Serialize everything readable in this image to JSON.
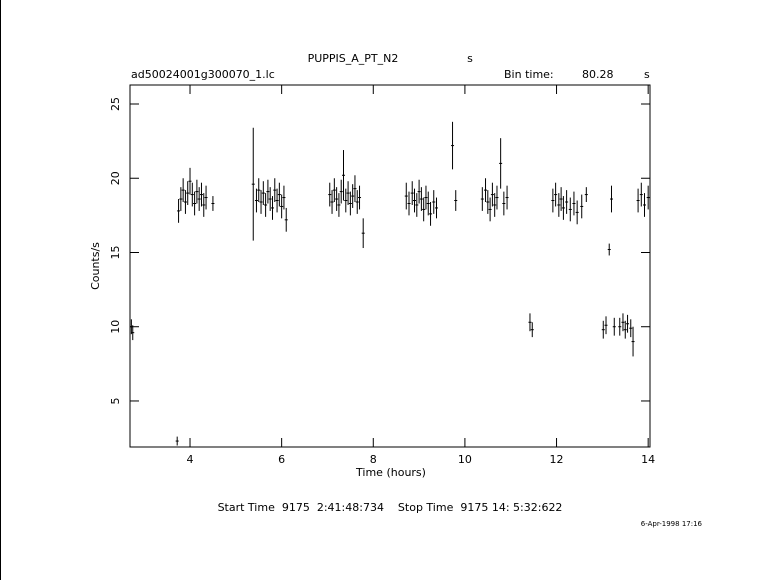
{
  "chart_data": {
    "type": "errorbar",
    "title": "PUPPIS_A_PT_N2",
    "title_unit": "s",
    "subtitle": "ad50024001g300070_1.lc",
    "bin_time_label": "Bin time:",
    "bin_time": "80.28",
    "bin_time_unit": "s",
    "xlabel": "Time (hours)",
    "ylabel": "Counts/s",
    "footer": "Start Time  9175  2:41:48:734    Stop Time  9175 14: 5:32:622",
    "date": "6-Apr-1998 17:16",
    "xlim": [
      2.69,
      14.04
    ],
    "ylim": [
      1.9,
      26.28
    ],
    "xticks": [
      4,
      6,
      8,
      10,
      12,
      14
    ],
    "yticks": [
      5,
      10,
      15,
      20,
      25
    ],
    "color": "#000000",
    "x": [
      2.72,
      2.75,
      3.72,
      3.75,
      3.8,
      3.85,
      3.9,
      3.95,
      4.0,
      4.05,
      4.1,
      4.15,
      4.2,
      4.25,
      4.3,
      4.35,
      4.5,
      5.38,
      5.45,
      5.5,
      5.55,
      5.6,
      5.65,
      5.7,
      5.75,
      5.8,
      5.85,
      5.9,
      5.95,
      6.0,
      6.05,
      6.1,
      7.05,
      7.1,
      7.15,
      7.2,
      7.25,
      7.3,
      7.35,
      7.4,
      7.45,
      7.5,
      7.55,
      7.6,
      7.65,
      7.7,
      7.78,
      8.72,
      8.78,
      8.85,
      8.9,
      8.95,
      9.0,
      9.05,
      9.1,
      9.15,
      9.2,
      9.25,
      9.32,
      9.38,
      9.73,
      9.8,
      10.38,
      10.45,
      10.5,
      10.55,
      10.6,
      10.65,
      10.7,
      10.78,
      10.85,
      10.92,
      11.42,
      11.47,
      11.92,
      11.98,
      12.05,
      12.1,
      12.15,
      12.22,
      12.3,
      12.38,
      12.45,
      12.55,
      12.65,
      13.02,
      13.08,
      13.15,
      13.2,
      13.26,
      13.38,
      13.45,
      13.5,
      13.55,
      13.62,
      13.67,
      13.78,
      13.85,
      13.92,
      14.0
    ],
    "values": [
      10.0,
      9.6,
      2.3,
      17.8,
      18.6,
      19.2,
      18.4,
      19.0,
      19.8,
      18.9,
      18.3,
      19.1,
      18.6,
      18.9,
      18.2,
      18.7,
      18.3,
      19.6,
      18.5,
      19.2,
      18.4,
      19.0,
      18.2,
      19.1,
      18.6,
      18.0,
      19.2,
      18.5,
      18.9,
      18.1,
      18.7,
      17.2,
      18.9,
      18.4,
      19.2,
      18.6,
      18.2,
      19.1,
      20.2,
      18.5,
      19.0,
      18.3,
      18.8,
      19.3,
      18.4,
      18.7,
      16.3,
      18.8,
      18.3,
      19.0,
      18.5,
      18.2,
      19.1,
      18.6,
      17.9,
      18.7,
      18.3,
      17.6,
      18.4,
      18.0,
      22.2,
      18.5,
      18.6,
      19.2,
      18.4,
      17.9,
      18.9,
      18.2,
      18.7,
      21.0,
      18.3,
      18.7,
      10.3,
      9.8,
      18.5,
      18.9,
      18.2,
      18.6,
      18.0,
      18.4,
      17.9,
      18.3,
      17.7,
      18.1,
      18.9,
      9.8,
      10.1,
      15.2,
      18.6,
      10.0,
      10.0,
      10.3,
      9.8,
      10.2,
      9.9,
      9.0,
      18.5,
      18.9,
      18.2,
      18.7
    ],
    "errors": [
      0.5,
      0.5,
      0.3,
      0.8,
      0.8,
      0.8,
      0.8,
      0.8,
      0.9,
      0.8,
      0.8,
      0.8,
      0.8,
      0.8,
      0.8,
      0.8,
      0.5,
      3.8,
      0.8,
      0.8,
      0.8,
      0.8,
      0.8,
      0.8,
      0.8,
      0.8,
      0.8,
      0.8,
      0.8,
      0.8,
      0.8,
      0.8,
      0.8,
      0.8,
      0.8,
      0.8,
      0.8,
      0.8,
      1.7,
      0.8,
      0.8,
      0.8,
      0.8,
      0.9,
      0.8,
      0.8,
      1.0,
      0.9,
      0.8,
      0.8,
      0.8,
      0.8,
      0.8,
      0.8,
      0.8,
      0.8,
      0.8,
      0.8,
      0.8,
      0.7,
      1.6,
      0.7,
      0.8,
      0.8,
      0.8,
      0.8,
      0.8,
      0.8,
      0.8,
      1.7,
      0.8,
      0.8,
      0.6,
      0.5,
      0.8,
      0.8,
      0.8,
      0.8,
      0.8,
      0.8,
      0.8,
      0.8,
      0.8,
      0.8,
      0.5,
      0.6,
      0.6,
      0.4,
      0.9,
      0.6,
      0.6,
      0.6,
      0.6,
      0.6,
      0.6,
      1.0,
      0.8,
      0.8,
      0.8,
      0.8
    ]
  }
}
